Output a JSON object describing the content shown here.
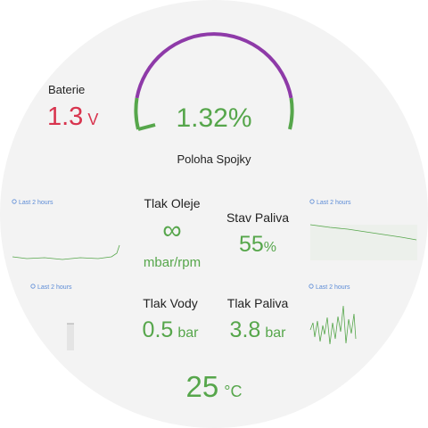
{
  "battery": {
    "label": "Baterie",
    "value": "1.3",
    "unit": "V"
  },
  "clutch": {
    "value": "1.32%",
    "label": "Poloha Spojky"
  },
  "panels": [
    {
      "label": "Tlak Oleje",
      "value": "∞",
      "unit": "mbar/rpm"
    },
    {
      "label": "Stav Paliva",
      "value": "55",
      "unit": "%"
    },
    {
      "label": "Tlak Vody",
      "value": "0.5",
      "unit": "bar"
    },
    {
      "label": "Tlak Paliva",
      "value": "3.8",
      "unit": "bar"
    }
  ],
  "temperature": {
    "value": "25",
    "unit": "°C"
  },
  "sparklines": [
    "Last 2 hours",
    "Last 2 hours",
    "Last 2 hours",
    "Last 2 hours"
  ]
}
